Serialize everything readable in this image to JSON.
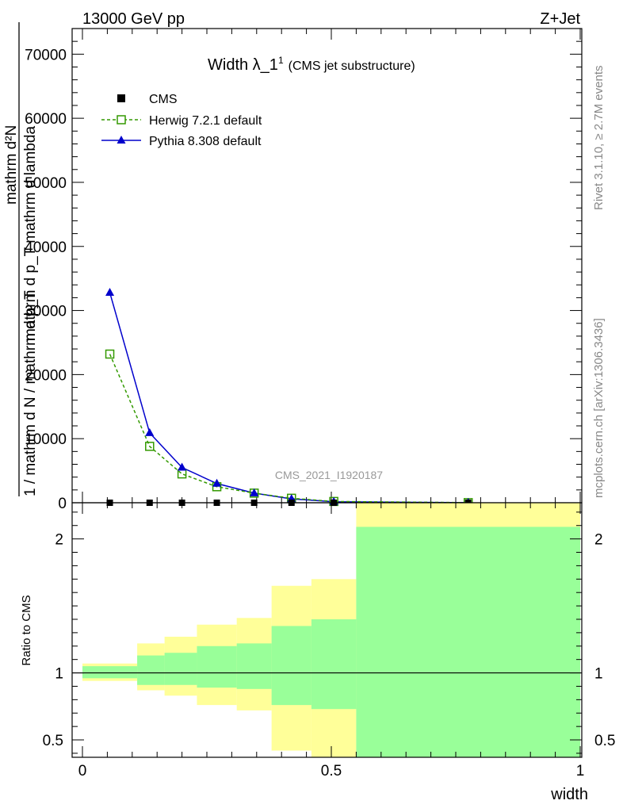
{
  "header": {
    "left": "13000 GeV pp",
    "right": "Z+Jet"
  },
  "side_labels": {
    "rivet": "Rivet 3.1.10, ≥ 2.7M events",
    "mcplots": "mcplots.cern.ch [arXiv:1306.3436]"
  },
  "analysis_id": "CMS_2021_I1920187",
  "colors": {
    "herwig": "#339900",
    "pythia": "#0000cc",
    "band_outer": "#ffff99",
    "band_inner": "#99ff99"
  },
  "chart_data": [
    {
      "type": "line",
      "title": "Width λ_1",
      "title_sup": "1",
      "subtitle": "(CMS jet substructure)",
      "ylabel_top": "mathrm d²N",
      "ylabel_mid": "mathrm d p_T mathrm d lambda",
      "ylabel_bottom": "1 / mathrm d N / mathrm d p_T",
      "xlim": [
        0,
        1
      ],
      "ylim": [
        0,
        74000
      ],
      "yticks": [
        0,
        10000,
        20000,
        30000,
        40000,
        50000,
        60000,
        70000
      ],
      "ytick_labels": [
        "0",
        "10000",
        "20000",
        "30000",
        "40000",
        "50000",
        "60000",
        "70000"
      ],
      "legend_position": "top-left",
      "series": [
        {
          "name": "CMS",
          "marker": "square",
          "x": [
            0.055,
            0.135,
            0.2,
            0.27,
            0.345,
            0.42,
            0.505,
            0.775
          ],
          "y": [
            0,
            0,
            0,
            0,
            0,
            0,
            0,
            0
          ]
        },
        {
          "name": "Herwig 7.2.1 default",
          "marker": "open-square",
          "x": [
            0.055,
            0.135,
            0.2,
            0.27,
            0.345,
            0.42,
            0.505,
            0.775
          ],
          "y": [
            23200,
            8800,
            4500,
            2500,
            1500,
            700,
            200,
            20
          ]
        },
        {
          "name": "Pythia 8.308 default",
          "marker": "triangle",
          "x": [
            0.055,
            0.135,
            0.2,
            0.27,
            0.345,
            0.42,
            0.505,
            0.775
          ],
          "y": [
            32800,
            10900,
            5500,
            3000,
            1500,
            600,
            150,
            10
          ]
        }
      ]
    },
    {
      "type": "area",
      "ylabel": "Ratio to CMS",
      "xlabel": "width",
      "xlim": [
        0,
        1
      ],
      "ylim": [
        0.37,
        2.27
      ],
      "yticks": [
        0.5,
        1,
        2
      ],
      "ytick_labels": [
        "0.5",
        "1",
        "2"
      ],
      "xticks": [
        0,
        0.5,
        1
      ],
      "xtick_labels": [
        "0",
        "0.5",
        "1"
      ],
      "bins": [
        {
          "x0": 0.0,
          "x1": 0.11,
          "outer": [
            0.94,
            1.07
          ],
          "inner": [
            0.96,
            1.05
          ]
        },
        {
          "x0": 0.11,
          "x1": 0.165,
          "outer": [
            0.87,
            1.22
          ],
          "inner": [
            0.91,
            1.13
          ]
        },
        {
          "x0": 0.165,
          "x1": 0.23,
          "outer": [
            0.83,
            1.27
          ],
          "inner": [
            0.91,
            1.15
          ]
        },
        {
          "x0": 0.23,
          "x1": 0.31,
          "outer": [
            0.76,
            1.36
          ],
          "inner": [
            0.89,
            1.2
          ]
        },
        {
          "x0": 0.31,
          "x1": 0.38,
          "outer": [
            0.72,
            1.41
          ],
          "inner": [
            0.88,
            1.22
          ]
        },
        {
          "x0": 0.38,
          "x1": 0.46,
          "outer": [
            0.42,
            1.65
          ],
          "inner": [
            0.76,
            1.35
          ]
        },
        {
          "x0": 0.46,
          "x1": 0.55,
          "outer": [
            0.37,
            1.7
          ],
          "inner": [
            0.73,
            1.4
          ]
        },
        {
          "x0": 0.55,
          "x1": 1.0,
          "outer": [
            0.37,
            2.27
          ],
          "inner": [
            0.37,
            2.09
          ]
        }
      ],
      "reference": 1
    }
  ]
}
